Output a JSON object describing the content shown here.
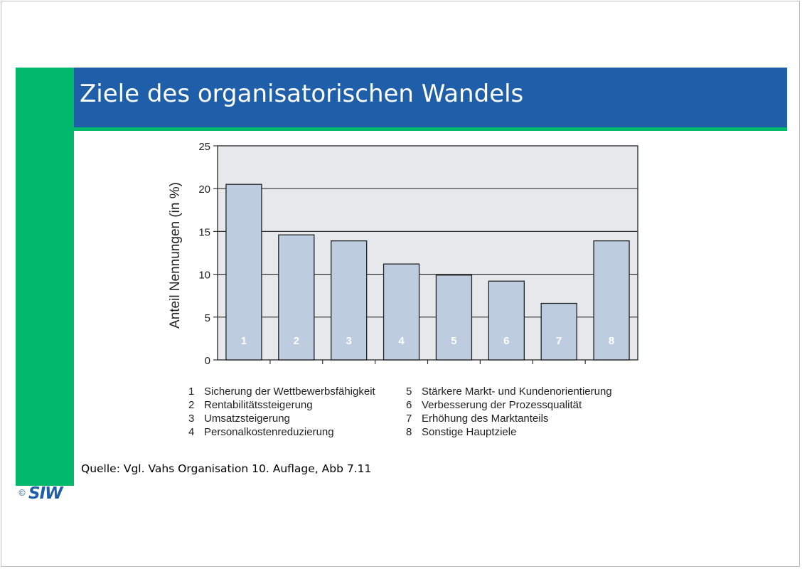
{
  "slide": {
    "title": "Ziele des organisatorischen Wandels",
    "source": "Quelle: Vgl. Vahs Organisation 10. Auflage, Abb 7.11",
    "logo_copyright": "©",
    "logo_text": "SIW"
  },
  "colors": {
    "title_bar": "#1f5fa9",
    "accent_green": "#00b96b",
    "bar_fill": "#bdcddf",
    "plot_bg": "#e6e8ec"
  },
  "chart_data": {
    "type": "bar",
    "categories": [
      "1",
      "2",
      "3",
      "4",
      "5",
      "6",
      "7",
      "8"
    ],
    "values": [
      20.5,
      14.6,
      13.9,
      11.2,
      9.9,
      9.2,
      6.6,
      13.9
    ],
    "ylabel": "Anteil Nennungen (in %)",
    "ylim": [
      0,
      25
    ],
    "yticks": [
      "0",
      "5",
      "10",
      "15",
      "20",
      "25"
    ],
    "grid": true,
    "legend": [
      {
        "num": "1",
        "text": "Sicherung der Wettbewerbsfähigkeit"
      },
      {
        "num": "2",
        "text": "Rentabilitätssteigerung"
      },
      {
        "num": "3",
        "text": "Umsatzsteigerung"
      },
      {
        "num": "4",
        "text": "Personalkostenreduzierung"
      },
      {
        "num": "5",
        "text": "Stärkere Markt- und Kundenorientierung"
      },
      {
        "num": "6",
        "text": "Verbesserung der Prozessqualität"
      },
      {
        "num": "7",
        "text": "Erhöhung des Marktanteils"
      },
      {
        "num": "8",
        "text": "Sonstige Hauptziele"
      }
    ]
  }
}
